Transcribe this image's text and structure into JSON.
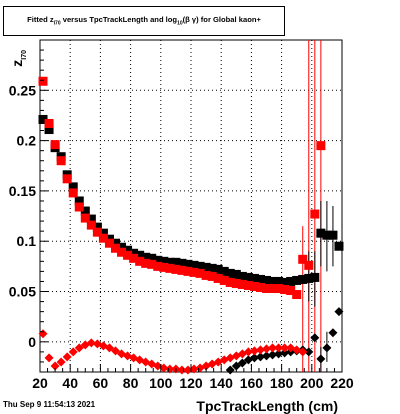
{
  "title": {
    "prefix": "Fitted  z",
    "sub1": "I70",
    "mid": "  versus TpcTrackLength and log",
    "sub2": "10",
    "tail": "(β  γ) for Global kaon+"
  },
  "timestamp": "Thu Sep  9 11:54:13 2021",
  "colors": {
    "series_black": "#000000",
    "series_red": "#ff0000",
    "grid": "#000000",
    "background": "#ffffff"
  },
  "chart_data": {
    "type": "scatter",
    "title": "Fitted  z_I70  versus TpcTrackLength and log10(β γ) for Global kaon+",
    "xlabel": "TpcTrackLength (cm)",
    "ylabel": "z_I70",
    "xlim": [
      20,
      220
    ],
    "ylim": [
      -0.03,
      0.3
    ],
    "grid": true,
    "x_ticks": [
      20,
      40,
      60,
      80,
      100,
      120,
      140,
      160,
      180,
      200,
      220
    ],
    "y_ticks": [
      0,
      0.05,
      0.1,
      0.15,
      0.2,
      0.25
    ],
    "x_tick_labels": [
      "20",
      "40",
      "60",
      "80",
      "100",
      "120",
      "140",
      "160",
      "180",
      "200",
      "220"
    ],
    "y_tick_labels": [
      "0",
      "0.05",
      "0.1",
      "0.15",
      "0.2",
      "0.25"
    ],
    "series": [
      {
        "color": "#000000",
        "marker": "square",
        "x": [
          22,
          26,
          30,
          34,
          38,
          42,
          46,
          50,
          54,
          58,
          62,
          66,
          70,
          74,
          78,
          82,
          86,
          90,
          94,
          98,
          102,
          106,
          110,
          114,
          118,
          122,
          126,
          130,
          134,
          138,
          142,
          146,
          150,
          154,
          158,
          162,
          166,
          170,
          174,
          178,
          182,
          186,
          190,
          194,
          198,
          202,
          206,
          210,
          214,
          218
        ],
        "y": [
          0.221,
          0.211,
          0.193,
          0.184,
          0.166,
          0.154,
          0.14,
          0.13,
          0.122,
          0.114,
          0.108,
          0.102,
          0.098,
          0.094,
          0.091,
          0.088,
          0.086,
          0.084,
          0.083,
          0.081,
          0.08,
          0.079,
          0.079,
          0.078,
          0.077,
          0.076,
          0.075,
          0.074,
          0.073,
          0.072,
          0.07,
          0.068,
          0.067,
          0.065,
          0.064,
          0.063,
          0.062,
          0.061,
          0.06,
          0.06,
          0.059,
          0.06,
          0.061,
          0.062,
          0.063,
          0.064,
          0.108,
          0.106,
          0.106,
          0.095
        ]
      },
      {
        "color": "#ff0000",
        "marker": "square",
        "x": [
          22,
          26,
          30,
          34,
          38,
          42,
          46,
          50,
          54,
          58,
          62,
          66,
          70,
          74,
          78,
          82,
          86,
          90,
          94,
          98,
          102,
          106,
          110,
          114,
          118,
          122,
          126,
          130,
          134,
          138,
          142,
          146,
          150,
          154,
          158,
          162,
          166,
          170,
          174,
          178,
          182,
          186,
          190,
          194,
          198,
          202,
          206
        ],
        "y": [
          0.259,
          0.217,
          0.196,
          0.18,
          0.162,
          0.148,
          0.134,
          0.123,
          0.116,
          0.109,
          0.103,
          0.098,
          0.093,
          0.089,
          0.086,
          0.083,
          0.08,
          0.078,
          0.077,
          0.075,
          0.074,
          0.073,
          0.072,
          0.071,
          0.07,
          0.069,
          0.068,
          0.066,
          0.065,
          0.063,
          0.061,
          0.059,
          0.058,
          0.057,
          0.056,
          0.055,
          0.054,
          0.053,
          0.053,
          0.053,
          0.052,
          0.051,
          0.047,
          0.082,
          0.076,
          0.127,
          0.195
        ]
      },
      {
        "color": "#000000",
        "marker": "diamond",
        "x": [
          146,
          150,
          154,
          158,
          162,
          166,
          170,
          174,
          178,
          182,
          186,
          190,
          194,
          198,
          202,
          206,
          210,
          214,
          218
        ],
        "y": [
          -0.028,
          -0.024,
          -0.021,
          -0.018,
          -0.016,
          -0.015,
          -0.014,
          -0.013,
          -0.012,
          -0.011,
          -0.01,
          -0.009,
          -0.008,
          -0.01,
          0.004,
          -0.017,
          -0.006,
          0.009,
          0.03
        ]
      },
      {
        "color": "#ff0000",
        "marker": "diamond",
        "x": [
          22,
          26,
          30,
          34,
          38,
          42,
          46,
          50,
          54,
          58,
          62,
          66,
          70,
          74,
          78,
          82,
          86,
          90,
          94,
          98,
          102,
          106,
          110,
          114,
          118,
          122,
          126,
          130,
          134,
          138,
          142,
          146,
          150,
          154,
          158,
          162,
          166,
          170,
          174,
          178,
          182,
          186,
          190,
          194
        ],
        "y": [
          0.008,
          -0.016,
          -0.024,
          -0.02,
          -0.015,
          -0.01,
          -0.006,
          -0.003,
          -0.001,
          -0.002,
          -0.004,
          -0.006,
          -0.009,
          -0.012,
          -0.014,
          -0.016,
          -0.018,
          -0.02,
          -0.022,
          -0.024,
          -0.026,
          -0.027,
          -0.027,
          -0.028,
          -0.028,
          -0.027,
          -0.026,
          -0.024,
          -0.022,
          -0.02,
          -0.018,
          -0.016,
          -0.014,
          -0.012,
          -0.01,
          -0.009,
          -0.008,
          -0.007,
          -0.006,
          -0.006,
          -0.006,
          -0.006,
          -0.008,
          -0.01
        ]
      }
    ],
    "error_bars": [
      {
        "color": "#ff0000",
        "x": 194,
        "lo": -0.03,
        "hi": 0.115
      },
      {
        "color": "#ff0000",
        "x": 198,
        "lo": -0.03,
        "hi": 0.3
      },
      {
        "color": "#ff0000",
        "x": 202,
        "lo": -0.03,
        "hi": 0.3
      },
      {
        "color": "#ff0000",
        "x": 206,
        "lo": -0.03,
        "hi": 0.3
      },
      {
        "color": "#000000",
        "x": 198,
        "lo": 0.04,
        "hi": 0.09
      },
      {
        "color": "#000000",
        "x": 202,
        "lo": 0.035,
        "hi": 0.09
      },
      {
        "color": "#000000",
        "x": 206,
        "lo": 0.075,
        "hi": 0.14
      },
      {
        "color": "#000000",
        "x": 210,
        "lo": 0.07,
        "hi": 0.14
      },
      {
        "color": "#000000",
        "x": 214,
        "lo": 0.075,
        "hi": 0.135
      },
      {
        "color": "#000000",
        "x": 206,
        "lo": -0.03,
        "hi": -0.005
      },
      {
        "color": "#000000",
        "x": 210,
        "lo": -0.02,
        "hi": 0.01
      }
    ]
  }
}
